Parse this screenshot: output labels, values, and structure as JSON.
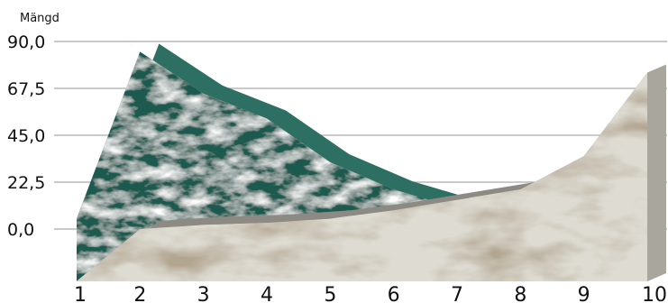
{
  "chart_data": {
    "type": "area",
    "ylabel": "Mängd",
    "xlabel": "",
    "title": "",
    "categories": [
      "1",
      "2",
      "3",
      "4",
      "5",
      "6",
      "7",
      "8",
      "9",
      "10"
    ],
    "y_ticks": [
      "0,0",
      "22,5",
      "45,0",
      "67,5",
      "90,0"
    ],
    "ylim": [
      0,
      90
    ],
    "grid": true,
    "legend": "none",
    "series": [
      {
        "values": [
          5,
          85,
          65,
          53,
          32,
          19,
          10,
          null,
          null,
          null
        ],
        "color": "#1f5a50"
      },
      {
        "values": [
          -25,
          0,
          2,
          3,
          5,
          9,
          14,
          19,
          35,
          75
        ],
        "color": "#d9d6cc"
      }
    ]
  }
}
